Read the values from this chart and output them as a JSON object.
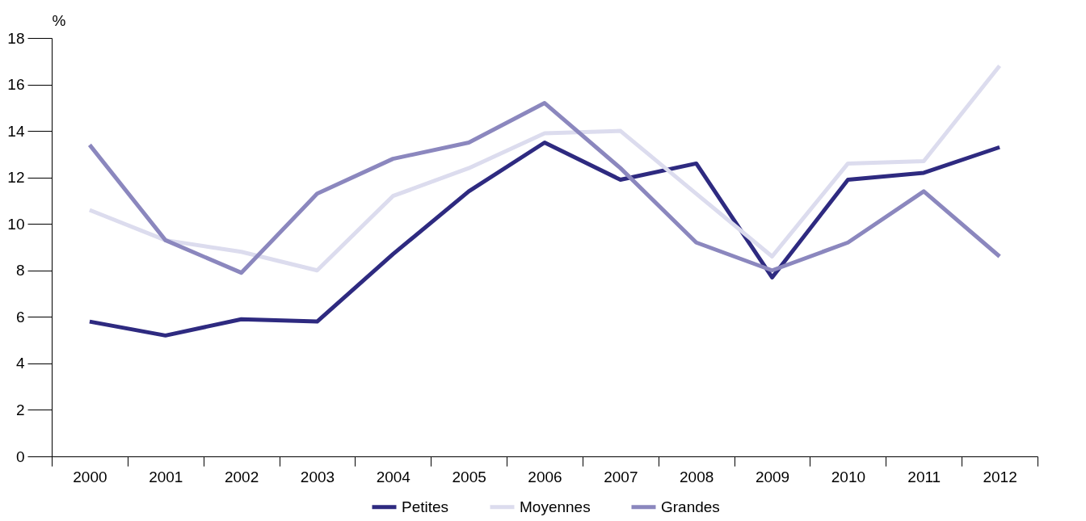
{
  "chart_data": {
    "type": "line",
    "ylabel": "%",
    "categories": [
      "2000",
      "2001",
      "2002",
      "2003",
      "2004",
      "2005",
      "2006",
      "2007",
      "2008",
      "2009",
      "2010",
      "2011",
      "2012"
    ],
    "series": [
      {
        "name": "Petites",
        "color": "#2e2a80",
        "values": [
          5.8,
          5.2,
          5.9,
          5.8,
          8.7,
          11.4,
          13.5,
          11.9,
          12.6,
          7.7,
          11.9,
          12.2,
          13.3
        ]
      },
      {
        "name": "Moyennes",
        "color": "#dcdcee",
        "values": [
          10.6,
          9.3,
          8.8,
          8.0,
          11.2,
          12.4,
          13.9,
          14.0,
          11.3,
          8.6,
          12.6,
          12.7,
          16.8
        ]
      },
      {
        "name": "Grandes",
        "color": "#8b87be",
        "values": [
          13.4,
          9.3,
          7.9,
          11.3,
          12.8,
          13.5,
          15.2,
          12.4,
          9.2,
          8.0,
          9.2,
          11.4,
          8.6
        ]
      }
    ],
    "ylim": [
      0,
      18
    ],
    "yticks": [
      0,
      2,
      4,
      6,
      8,
      10,
      12,
      14,
      16,
      18
    ],
    "grid": false,
    "legend": "bottom",
    "line_style": "solid",
    "marker": "none"
  }
}
